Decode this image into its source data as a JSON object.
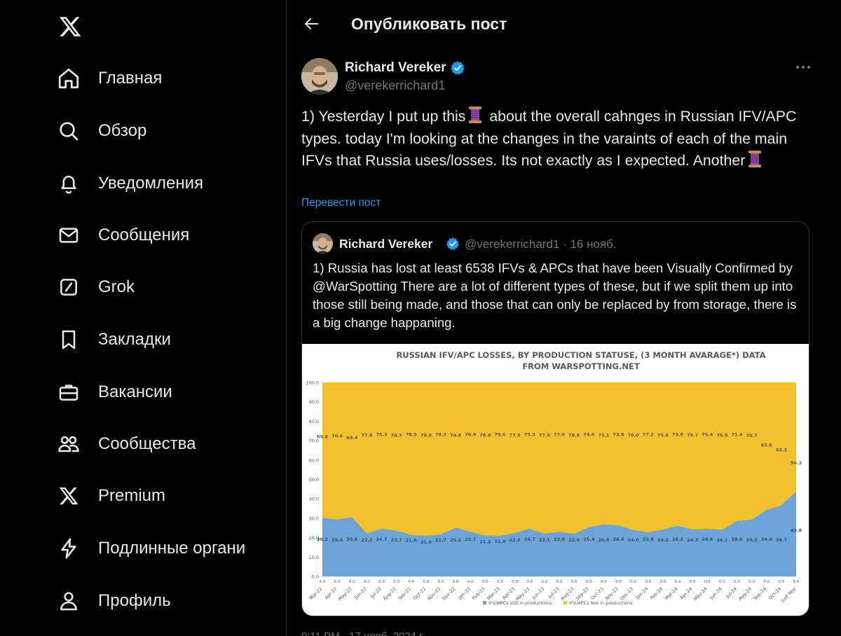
{
  "sidebar": {
    "logo": "x-logo-icon",
    "items": [
      {
        "label": "Главная",
        "icon": "home-icon"
      },
      {
        "label": "Обзор",
        "icon": "search-icon"
      },
      {
        "label": "Уведомления",
        "icon": "bell-icon"
      },
      {
        "label": "Сообщения",
        "icon": "envelope-icon"
      },
      {
        "label": "Grok",
        "icon": "grok-icon"
      },
      {
        "label": "Закладки",
        "icon": "bookmark-icon"
      },
      {
        "label": "Вакансии",
        "icon": "briefcase-icon"
      },
      {
        "label": "Сообщества",
        "icon": "communities-icon"
      },
      {
        "label": "Premium",
        "icon": "x-logo-icon"
      },
      {
        "label": "Подлинные органи",
        "icon": "lightning-icon"
      },
      {
        "label": "Профиль",
        "icon": "person-icon"
      }
    ]
  },
  "header": {
    "title": "Опубликовать пост"
  },
  "post": {
    "author_name": "Richard Vereker",
    "author_handle": "@verekerrichard1",
    "text_parts": [
      "1) Yesterday I put up this",
      " about the overall cahnges in Russian IFV/APC types. today I'm looking at the changes in the varaints of each of the main IFVs that Russia uses/losses. Its not exactly as I expected. Another"
    ],
    "translate_label": "Перевести пост"
  },
  "quote": {
    "author_name": "Richard Vereker",
    "meta": "@verekerrichard1 · 16 нояб.",
    "text": "1) Russia has lost at least 6538 IFVs & APCs that have been Visually Confirmed by @WarSpotting There are a lot of different types of these, but if we split them up into those still being made, and those that can only be replaced by from storage, there is a big change happaning."
  },
  "colors": {
    "accent": "#1d9bf0",
    "not_in_production": "#f2c12e",
    "in_production": "#6ea3d8"
  },
  "chart_data": {
    "type": "area",
    "title": "RUSSIAN IFV/APC LOSSES, BY PRODUCTION STATUSE, (3 MONTH AVARAGE*) DATA FROM WARSPOTTING.NET",
    "ylim": [
      0,
      100
    ],
    "yticks": [
      "0.0",
      "10.0",
      "20.0",
      "30.0",
      "40.0",
      "50.0",
      "60.0",
      "70.0",
      "80.0",
      "90.0",
      "100.0"
    ],
    "categories": [
      "Mar-22",
      "Apr-22",
      "May-22",
      "Jun-22",
      "Jul-22",
      "Aug-22",
      "Sep-22",
      "Oct-22",
      "Nov-22",
      "Dec-22",
      "Jan-23",
      "Feb-23",
      "Mar-23",
      "Apr-23",
      "May-23",
      "Jun-23",
      "Jul-23",
      "Aug-23",
      "Sep-23",
      "Oct-23",
      "Nov-23",
      "Dec-23",
      "Jan-24",
      "Feb-24",
      "Mar-24",
      "Apr-24",
      "May-24",
      "Jun-24",
      "Jul-24",
      "Aug-24",
      "Sep-24",
      "Oct-24",
      "Just Nov"
    ],
    "series": [
      {
        "name": "IFV/APCs still in productions",
        "values": [
          30.2,
          29.4,
          30.6,
          22.2,
          24.7,
          23.7,
          21.5,
          21.0,
          21.7,
          25.2,
          23.1,
          21.2,
          21.0,
          22.5,
          24.7,
          22.1,
          23.0,
          22.0,
          25.4,
          26.9,
          26.4,
          24.0,
          22.8,
          24.2,
          26.2,
          24.3,
          24.6,
          24.1,
          28.6,
          29.3,
          34.4,
          36.7,
          43.8
        ]
      },
      {
        "name": "IFV/APCs Not in productions",
        "values": [
          69.8,
          70.6,
          69.4,
          77.8,
          75.3,
          76.3,
          78.5,
          79.0,
          78.3,
          74.8,
          76.9,
          78.8,
          79.0,
          77.5,
          75.3,
          77.9,
          77.0,
          78.0,
          74.6,
          73.1,
          73.6,
          76.0,
          77.2,
          75.8,
          73.8,
          75.7,
          75.4,
          75.9,
          71.4,
          70.7,
          65.6,
          63.3,
          56.3
        ]
      }
    ],
    "zero_labels": "0.0",
    "legend": "bottom"
  },
  "footer_peek": "9:11 PM · 17 нояб. 2024 г."
}
